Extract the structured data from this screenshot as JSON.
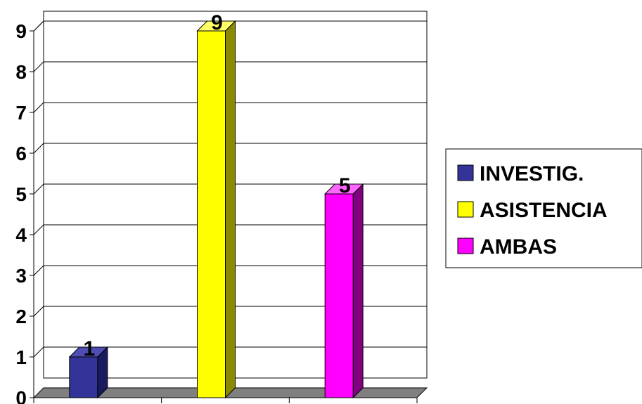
{
  "chart_data": {
    "type": "bar",
    "style": "3d",
    "categories": [
      "INVESTIG.",
      "ASISTENCIA",
      "AMBAS"
    ],
    "values": [
      1,
      9,
      5
    ],
    "data_labels": [
      "1",
      "9",
      "5"
    ],
    "y_ticks": [
      "0",
      "1",
      "2",
      "3",
      "4",
      "5",
      "6",
      "7",
      "8",
      "9"
    ],
    "ylim": [
      0,
      9
    ],
    "grid": true,
    "legend_position": "right",
    "legend": [
      {
        "label": "INVESTIG.",
        "color": "#333399"
      },
      {
        "label": "ASISTENCIA",
        "color": "#ffff00"
      },
      {
        "label": "AMBAS",
        "color": "#ff00ff"
      }
    ],
    "colors": {
      "bar_front": [
        "#333399",
        "#ffff00",
        "#ff00ff"
      ],
      "bar_top": [
        "#4d4db3",
        "#ffff66",
        "#ff66ff"
      ],
      "bar_side": [
        "#1a1a5e",
        "#8a8a00",
        "#800080"
      ],
      "floor": "#808080",
      "grid": "#000000"
    }
  }
}
